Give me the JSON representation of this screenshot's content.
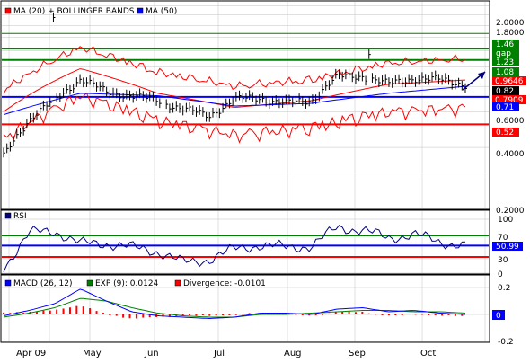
{
  "colors": {
    "price": "#000000",
    "bollinger": "#ff0000",
    "ma": "#0000ff",
    "support": "#ff0000",
    "resistance": "#008000",
    "rsi_line": "#000080",
    "rsi_high": "#008000",
    "rsi_low": "#ff0000",
    "macd_line": "#0000ff",
    "signal_line": "#008000",
    "divergence": "#ff0000",
    "arrow": "#000080",
    "grid": "#c0c0c0"
  },
  "price_panel": {
    "legend": [
      {
        "label": "MA (20) + BOLLINGER BANDS",
        "color": "#ff0000"
      },
      {
        "label": "MA (50)",
        "color": "#0000ff"
      }
    ],
    "y_ticks": [
      "2.0000",
      "1.8000",
      "0.6000",
      "0.4000",
      "0.2000"
    ],
    "tags": [
      {
        "label": "1.46",
        "color": "#008000"
      },
      {
        "label": "gap",
        "color": "#008000"
      },
      {
        "label": "1.23",
        "color": "#008000"
      },
      {
        "label": "1.08",
        "color": "#008000"
      },
      {
        "label": "0.9646",
        "color": "#ff0000"
      },
      {
        "label": "0.82",
        "color": "#000000"
      },
      {
        "label": "0.7909",
        "color": "#ff0000"
      },
      {
        "label": "0.71",
        "color": "#0000ff"
      },
      {
        "label": "0.52",
        "color": "#ff0000"
      }
    ]
  },
  "rsi_panel": {
    "legend": "RSI",
    "y_ticks": [
      "100",
      "70",
      "30",
      "0"
    ],
    "tag": "50.99"
  },
  "macd_panel": {
    "legend_macd": "MACD (26, 12)",
    "legend_exp": "EXP (9): 0.0124",
    "legend_div": "Divergence: -0.0101",
    "y_ticks": [
      "0.2",
      "-0.2"
    ],
    "tag": "0"
  },
  "x_axis": {
    "labels": [
      "Apr 09",
      "May",
      "Jun",
      "Jul",
      "Aug",
      "Sep",
      "Oct"
    ]
  },
  "chart_data": [
    {
      "type": "line",
      "title": "",
      "x": [
        "Apr 09",
        "May",
        "Jun",
        "Jul",
        "Aug",
        "Sep",
        "Oct"
      ],
      "y_axis_scale": "log",
      "series": [
        {
          "name": "MA (20) + BOLLINGER BANDS",
          "values": [
            0.6,
            0.98,
            0.74,
            0.63,
            0.68,
            0.82,
            0.86
          ]
        },
        {
          "name": "MA (50)",
          "values": [
            0.58,
            0.74,
            0.72,
            0.64,
            0.66,
            0.74,
            0.8
          ]
        }
      ],
      "price_close": [
        0.36,
        0.55,
        0.68,
        0.87,
        0.75,
        0.72,
        0.68,
        0.62,
        0.57,
        0.69,
        0.7,
        0.66,
        0.68,
        0.89,
        0.9,
        0.82,
        0.88,
        0.86,
        0.82
      ],
      "horizontal_lines": [
        {
          "value": 1.46,
          "color": "#008000"
        },
        {
          "value": 1.23,
          "color": "#008000"
        },
        {
          "value": 1.08,
          "color": "#008000"
        },
        {
          "value": 0.71,
          "color": "#0000ff"
        },
        {
          "value": 0.52,
          "color": "#ff0000"
        }
      ],
      "ylim": [
        0.2,
        2.0
      ],
      "grid": true,
      "legend_position": "top-left"
    },
    {
      "type": "line",
      "title": "",
      "series": [
        {
          "name": "RSI",
          "values": [
            10,
            75,
            78,
            55,
            55,
            48,
            40,
            20,
            25,
            45,
            52,
            48,
            50,
            85,
            80,
            65,
            72,
            58,
            51
          ]
        }
      ],
      "horizontal_lines": [
        70,
        50.99,
        30
      ],
      "ylim": [
        0,
        100
      ],
      "grid": true,
      "legend_position": "top-left"
    },
    {
      "type": "line",
      "title": "",
      "series": [
        {
          "name": "MACD (26, 12)",
          "values": [
            -0.01,
            0.03,
            0.08,
            0.19,
            0.1,
            0.02,
            -0.01,
            -0.02,
            -0.03,
            -0.02,
            0.01,
            0.01,
            0.0,
            0.04,
            0.05,
            0.02,
            0.03,
            0.01,
            0.0
          ]
        },
        {
          "name": "EXP (9): 0.0124",
          "values": [
            -0.02,
            0.01,
            0.05,
            0.12,
            0.1,
            0.05,
            0.01,
            -0.01,
            -0.02,
            -0.02,
            0.0,
            0.0,
            0.01,
            0.02,
            0.03,
            0.03,
            0.02,
            0.02,
            0.01
          ]
        },
        {
          "name": "Divergence: -0.0101",
          "values": [
            0.01,
            0.02,
            0.03,
            0.07,
            0.0,
            -0.03,
            -0.02,
            -0.01,
            -0.01,
            0.0,
            0.01,
            0.01,
            -0.01,
            0.02,
            0.02,
            -0.01,
            0.01,
            -0.01,
            -0.01
          ]
        }
      ],
      "ylim": [
        -0.2,
        0.2
      ],
      "grid": true,
      "legend_position": "top-left"
    }
  ]
}
